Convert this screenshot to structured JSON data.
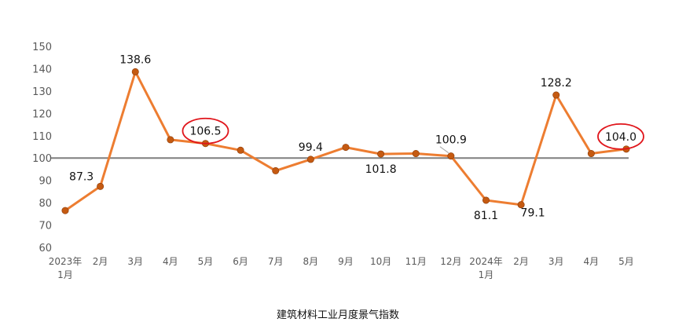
{
  "chart_data": {
    "type": "line",
    "caption": "建筑材料工业月度景气指数",
    "x_labels": [
      [
        "2023年",
        "1月"
      ],
      [
        "2月"
      ],
      [
        "3月"
      ],
      [
        "4月"
      ],
      [
        "5月"
      ],
      [
        "6月"
      ],
      [
        "7月"
      ],
      [
        "8月"
      ],
      [
        "9月"
      ],
      [
        "10月"
      ],
      [
        "11月"
      ],
      [
        "12月"
      ],
      [
        "2024年",
        "1月"
      ],
      [
        "2月"
      ],
      [
        "3月"
      ],
      [
        "4月"
      ],
      [
        "5月"
      ]
    ],
    "series": [
      {
        "values": [
          76.5,
          87.3,
          138.6,
          108.2,
          106.5,
          103.5,
          94.3,
          99.4,
          104.8,
          101.8,
          102.0,
          100.9,
          81.1,
          79.1,
          128.2,
          102.0,
          104.0
        ],
        "color": "#ED7D31",
        "marker_color": "#C55A11"
      }
    ],
    "data_labels": [
      {
        "index": 1,
        "text": "87.3",
        "placement": "left"
      },
      {
        "index": 2,
        "text": "138.6",
        "placement": "above"
      },
      {
        "index": 4,
        "text": "106.5",
        "placement": "above",
        "highlight": true
      },
      {
        "index": 7,
        "text": "99.4",
        "placement": "above"
      },
      {
        "index": 9,
        "text": "101.8",
        "placement": "below"
      },
      {
        "index": 11,
        "text": "100.9",
        "placement": "above",
        "leader": true
      },
      {
        "index": 12,
        "text": "81.1",
        "placement": "below"
      },
      {
        "index": 13,
        "text": "79.1",
        "placement": "below-right"
      },
      {
        "index": 14,
        "text": "128.2",
        "placement": "above"
      },
      {
        "index": 16,
        "text": "104.0",
        "placement": "above-left",
        "highlight": true
      }
    ],
    "ylim": [
      60,
      150
    ],
    "yticks": [
      60,
      70,
      80,
      90,
      100,
      110,
      120,
      130,
      140,
      150
    ],
    "reference_line": 100,
    "reference_line_color": "#7F7F7F",
    "highlight_color": "#E0151B",
    "grid": false,
    "legend": "none"
  }
}
